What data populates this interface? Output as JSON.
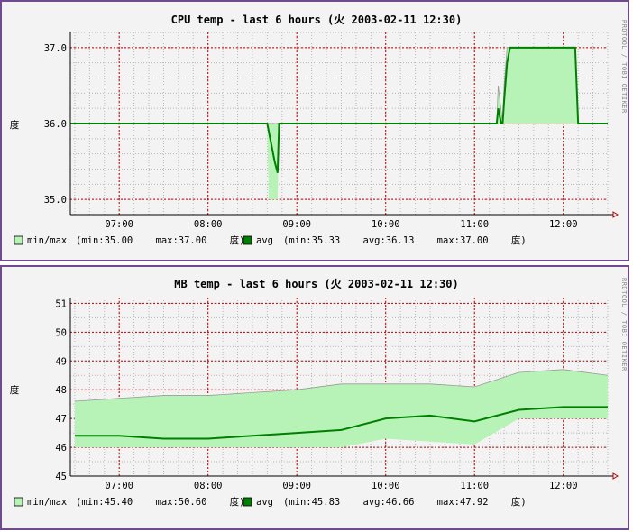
{
  "chart_data": [
    {
      "type": "area",
      "title": "CPU temp - last 6 hours (火 2003-02-11 12:30)",
      "ylabel": "度",
      "side_label": "RRDTOOL / TOBI OETIKER",
      "x_ticks": [
        "07:00",
        "08:00",
        "09:00",
        "10:00",
        "11:00",
        "12:00"
      ],
      "x_range": [
        "06:27",
        "12:30"
      ],
      "ylim": [
        34.8,
        37.2
      ],
      "y_ticks": [
        "35.0",
        "36.0",
        "37.0"
      ],
      "grid": true,
      "colors": {
        "minmax": "#b7f2b7",
        "avg": "#008000",
        "grid_major": "#b80000",
        "grid_minor": "#b8b8b8"
      },
      "legend": {
        "minmax_label": "min/max",
        "minmax_stats": "(min:35.00    max:37.00    度)",
        "avg_label": "avg",
        "avg_stats": "(min:35.33    avg:36.13    max:37.00    度)"
      },
      "series": [
        {
          "name": "avg",
          "x": [
            "06:27",
            "08:40",
            "08:41",
            "08:43",
            "08:45",
            "08:47",
            "08:48",
            "11:15",
            "11:16",
            "11:17",
            "11:18",
            "11:19",
            "11:20",
            "11:22",
            "11:24",
            "11:25",
            "11:26",
            "12:08",
            "12:09",
            "12:10",
            "12:30"
          ],
          "y": [
            36.0,
            36.0,
            35.9,
            35.7,
            35.5,
            35.35,
            36.0,
            36.0,
            36.2,
            36.1,
            36.0,
            36.0,
            36.3,
            36.8,
            37.0,
            37.0,
            37.0,
            37.0,
            36.5,
            36.0,
            36.0
          ]
        },
        {
          "name": "min",
          "x": [
            "06:27",
            "08:40",
            "08:41",
            "08:43",
            "08:47",
            "08:48",
            "12:30"
          ],
          "y": [
            36.0,
            36.0,
            35.0,
            35.0,
            35.0,
            36.0,
            36.0
          ]
        },
        {
          "name": "max",
          "x": [
            "06:27",
            "11:15",
            "11:16",
            "11:19",
            "11:20",
            "11:22",
            "11:25",
            "12:08",
            "12:10",
            "12:30"
          ],
          "y": [
            36.0,
            36.0,
            36.5,
            36.0,
            36.5,
            37.0,
            37.0,
            37.0,
            36.0,
            36.0
          ]
        }
      ]
    },
    {
      "type": "area",
      "title": "MB temp - last 6 hours (火 2003-02-11 12:30)",
      "ylabel": "度",
      "side_label": "RRDTOOL / TOBI OETIKER",
      "x_ticks": [
        "07:00",
        "08:00",
        "09:00",
        "10:00",
        "11:00",
        "12:00"
      ],
      "x_range": [
        "06:27",
        "12:30"
      ],
      "ylim": [
        45,
        51.2
      ],
      "y_ticks": [
        "45",
        "46",
        "47",
        "48",
        "49",
        "50",
        "51"
      ],
      "grid": true,
      "colors": {
        "minmax": "#b7f2b7",
        "avg": "#008000",
        "grid_major": "#b80000",
        "grid_minor": "#b8b8b8"
      },
      "legend": {
        "minmax_label": "min/max",
        "minmax_stats": "(min:45.40    max:50.60    度)",
        "avg_label": "avg",
        "avg_stats": "(min:45.83    avg:46.66    max:47.92    度)"
      },
      "series": [
        {
          "name": "avg",
          "x": [
            "06:30",
            "07:00",
            "07:30",
            "08:00",
            "08:30",
            "09:00",
            "09:30",
            "10:00",
            "10:30",
            "11:00",
            "11:30",
            "12:00",
            "12:30"
          ],
          "y": [
            46.4,
            46.4,
            46.3,
            46.3,
            46.4,
            46.5,
            46.6,
            47.0,
            47.1,
            46.9,
            47.3,
            47.4,
            47.4
          ]
        },
        {
          "name": "min",
          "x": [
            "06:30",
            "07:00",
            "07:30",
            "08:00",
            "08:30",
            "09:00",
            "09:30",
            "10:00",
            "10:30",
            "11:00",
            "11:30",
            "12:00",
            "12:30"
          ],
          "y": [
            46.0,
            46.0,
            46.0,
            46.0,
            46.0,
            46.0,
            46.0,
            46.3,
            46.2,
            46.1,
            47.0,
            47.0,
            47.0
          ]
        },
        {
          "name": "max",
          "x": [
            "06:30",
            "07:00",
            "07:30",
            "08:00",
            "08:30",
            "09:00",
            "09:30",
            "10:00",
            "10:30",
            "11:00",
            "11:30",
            "12:00",
            "12:30"
          ],
          "y": [
            47.6,
            47.7,
            47.8,
            47.8,
            47.9,
            48.0,
            48.2,
            48.2,
            48.2,
            48.1,
            48.6,
            48.7,
            48.5
          ]
        }
      ]
    }
  ]
}
